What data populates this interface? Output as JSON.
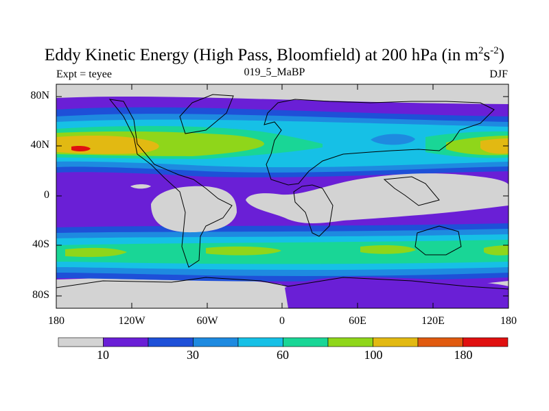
{
  "title": {
    "main": "Eddy Kinetic Energy (High Pass, Bloomfield) at 200 hPa (in m",
    "sup1": "2",
    "mid": "s",
    "sup2": "-2",
    "end": ")"
  },
  "subtitle": {
    "left": "Expt = teyee",
    "center": "019_5_MaBP",
    "right": "DJF"
  },
  "map": {
    "lat_labels": [
      "80N",
      "40N",
      "0",
      "40S",
      "80S"
    ],
    "lon_labels": [
      "180",
      "120W",
      "60W",
      "0",
      "60E",
      "120E",
      "180"
    ]
  },
  "colorbar": {
    "colors": [
      "#d3d3d3",
      "#6a1fd6",
      "#1e50d8",
      "#1e8ae0",
      "#16c0e6",
      "#19d696",
      "#8fd61a",
      "#e2b912",
      "#e05a0f",
      "#e01010"
    ],
    "labels": [
      "10",
      "30",
      "60",
      "100",
      "180"
    ]
  }
}
